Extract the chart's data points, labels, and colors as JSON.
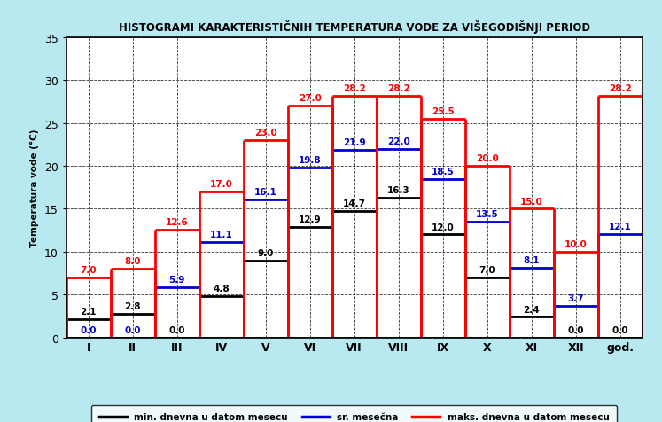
{
  "title": "HISTOGRAMI KARAKTERISTIČNIH TEMPERATURA VODE ZA VIŠEGODIŠNJI PERIOD",
  "ylabel": "Temperatura vode (°C)",
  "months": [
    "I",
    "II",
    "III",
    "IV",
    "V",
    "VI",
    "VII",
    "VIII",
    "IX",
    "X",
    "XI",
    "XII",
    "god."
  ],
  "min_values": [
    2.1,
    2.8,
    0.0,
    4.8,
    9.0,
    12.9,
    14.7,
    16.3,
    12.0,
    7.0,
    2.4,
    0.0,
    0.0
  ],
  "avg_values": [
    0.0,
    0.0,
    5.9,
    11.1,
    16.1,
    19.8,
    21.9,
    22.0,
    18.5,
    13.5,
    8.1,
    3.7,
    12.1
  ],
  "max_values": [
    7.0,
    8.0,
    12.6,
    17.0,
    23.0,
    27.0,
    28.2,
    28.2,
    25.5,
    20.0,
    15.0,
    10.0,
    28.2
  ],
  "ylim": [
    0,
    35
  ],
  "yticks": [
    0,
    5,
    10,
    15,
    20,
    25,
    30,
    35
  ],
  "color_min": "#000000",
  "color_avg": "#0000cd",
  "color_max": "#ff0000",
  "background_color": "#b8e8f0",
  "plot_bg_color": "#ffffff",
  "legend_labels": [
    "min. dnevna u datom mesecu",
    "sr. mesečna",
    "maks. dnevna u datom mesecu"
  ],
  "title_fontsize": 8.5,
  "label_fontsize": 7.5,
  "tick_fontsize": 9,
  "lw": 2.0
}
